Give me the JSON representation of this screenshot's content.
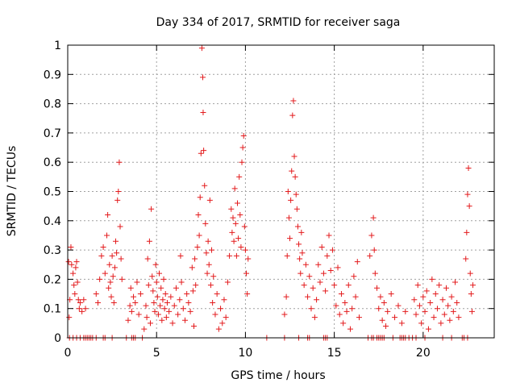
{
  "chart_data": {
    "type": "scatter",
    "title": "Day 334 of 2017, SRMTID for receiver saga",
    "xlabel": "GPS time / hours",
    "ylabel": "SRMTID / TECUs",
    "xlim": [
      0,
      24
    ],
    "ylim": [
      0,
      1
    ],
    "xticks": [
      0,
      5,
      10,
      15,
      20
    ],
    "yticks": [
      0,
      0.1,
      0.2,
      0.3,
      0.4,
      0.5,
      0.6,
      0.7,
      0.8,
      0.9,
      1
    ],
    "grid": true,
    "marker": "+",
    "color": "#e31a1c",
    "series": [
      {
        "values": [
          [
            0.05,
            0.26
          ],
          [
            0.08,
            0.07
          ],
          [
            0.12,
            0.13
          ],
          [
            0.18,
            0.31
          ],
          [
            0.22,
            0.25
          ],
          [
            0.3,
            0.22
          ],
          [
            0.35,
            0.18
          ],
          [
            0.4,
            0.15
          ],
          [
            0.45,
            0.24
          ],
          [
            0.5,
            0.26
          ],
          [
            0.55,
            0.19
          ],
          [
            0.6,
            0.13
          ],
          [
            0.65,
            0.1
          ],
          [
            0.7,
            0.12
          ],
          [
            0.8,
            0.09
          ],
          [
            0.9,
            0.13
          ],
          [
            1.0,
            0.1
          ],
          [
            1.6,
            0.15
          ],
          [
            1.7,
            0.12
          ],
          [
            1.8,
            0.2
          ],
          [
            1.9,
            0.28
          ],
          [
            2.0,
            0.31
          ],
          [
            2.1,
            0.22
          ],
          [
            2.2,
            0.35
          ],
          [
            2.25,
            0.42
          ],
          [
            2.3,
            0.17
          ],
          [
            2.35,
            0.25
          ],
          [
            2.4,
            0.19
          ],
          [
            2.45,
            0.14
          ],
          [
            2.5,
            0.28
          ],
          [
            2.55,
            0.21
          ],
          [
            2.6,
            0.12
          ],
          [
            2.65,
            0.24
          ],
          [
            2.7,
            0.33
          ],
          [
            2.75,
            0.29
          ],
          [
            2.8,
            0.47
          ],
          [
            2.85,
            0.5
          ],
          [
            2.9,
            0.6
          ],
          [
            2.95,
            0.38
          ],
          [
            3.0,
            0.27
          ],
          [
            3.05,
            0.2
          ],
          [
            3.4,
            0.06
          ],
          [
            3.5,
            0.11
          ],
          [
            3.55,
            0.17
          ],
          [
            3.6,
            0.09
          ],
          [
            3.7,
            0.14
          ],
          [
            3.8,
            0.12
          ],
          [
            3.9,
            0.19
          ],
          [
            4.0,
            0.08
          ],
          [
            4.1,
            0.15
          ],
          [
            4.3,
            0.03
          ],
          [
            4.4,
            0.11
          ],
          [
            4.45,
            0.07
          ],
          [
            4.5,
            0.27
          ],
          [
            4.55,
            0.18
          ],
          [
            4.6,
            0.33
          ],
          [
            4.65,
            0.05
          ],
          [
            4.7,
            0.44
          ],
          [
            4.75,
            0.21
          ],
          [
            4.8,
            0.16
          ],
          [
            4.85,
            0.12
          ],
          [
            4.9,
            0.09
          ],
          [
            4.95,
            0.25
          ],
          [
            5.0,
            0.19
          ],
          [
            5.05,
            0.14
          ],
          [
            5.1,
            0.08
          ],
          [
            5.15,
            0.22
          ],
          [
            5.2,
            0.11
          ],
          [
            5.25,
            0.17
          ],
          [
            5.3,
            0.06
          ],
          [
            5.35,
            0.13
          ],
          [
            5.4,
            0.2
          ],
          [
            5.45,
            0.1
          ],
          [
            5.5,
            0.15
          ],
          [
            5.55,
            0.07
          ],
          [
            5.6,
            0.12
          ],
          [
            5.7,
            0.09
          ],
          [
            5.8,
            0.14
          ],
          [
            5.9,
            0.05
          ],
          [
            6.0,
            0.11
          ],
          [
            6.1,
            0.17
          ],
          [
            6.2,
            0.08
          ],
          [
            6.3,
            0.13
          ],
          [
            6.35,
            0.28
          ],
          [
            6.4,
            0.19
          ],
          [
            6.5,
            0.1
          ],
          [
            6.6,
            0.06
          ],
          [
            6.7,
            0.15
          ],
          [
            6.8,
            0.12
          ],
          [
            6.9,
            0.09
          ],
          [
            7.0,
            0.24
          ],
          [
            7.05,
            0.16
          ],
          [
            7.1,
            0.04
          ],
          [
            7.15,
            0.27
          ],
          [
            7.2,
            0.18
          ],
          [
            7.3,
            0.31
          ],
          [
            7.35,
            0.42
          ],
          [
            7.4,
            0.35
          ],
          [
            7.45,
            0.48
          ],
          [
            7.5,
            0.63
          ],
          [
            7.55,
            0.99
          ],
          [
            7.6,
            0.89
          ],
          [
            7.62,
            0.77
          ],
          [
            7.65,
            0.64
          ],
          [
            7.7,
            0.52
          ],
          [
            7.75,
            0.39
          ],
          [
            7.8,
            0.29
          ],
          [
            7.85,
            0.22
          ],
          [
            7.9,
            0.33
          ],
          [
            7.95,
            0.25
          ],
          [
            8.0,
            0.47
          ],
          [
            8.05,
            0.18
          ],
          [
            8.1,
            0.3
          ],
          [
            8.15,
            0.12
          ],
          [
            8.2,
            0.21
          ],
          [
            8.3,
            0.08
          ],
          [
            8.4,
            0.15
          ],
          [
            8.5,
            0.03
          ],
          [
            8.6,
            0.1
          ],
          [
            8.7,
            0.05
          ],
          [
            8.8,
            0.13
          ],
          [
            8.9,
            0.07
          ],
          [
            9.0,
            0.19
          ],
          [
            9.1,
            0.28
          ],
          [
            9.2,
            0.44
          ],
          [
            9.25,
            0.36
          ],
          [
            9.3,
            0.41
          ],
          [
            9.35,
            0.33
          ],
          [
            9.4,
            0.51
          ],
          [
            9.45,
            0.39
          ],
          [
            9.5,
            0.28
          ],
          [
            9.55,
            0.46
          ],
          [
            9.6,
            0.34
          ],
          [
            9.65,
            0.55
          ],
          [
            9.7,
            0.42
          ],
          [
            9.75,
            0.31
          ],
          [
            9.8,
            0.6
          ],
          [
            9.85,
            0.65
          ],
          [
            9.9,
            0.69
          ],
          [
            9.95,
            0.38
          ],
          [
            10.0,
            0.3
          ],
          [
            10.05,
            0.22
          ],
          [
            10.1,
            0.15
          ],
          [
            10.15,
            0.27
          ],
          [
            12.2,
            0.08
          ],
          [
            12.3,
            0.14
          ],
          [
            12.35,
            0.28
          ],
          [
            12.4,
            0.5
          ],
          [
            12.45,
            0.41
          ],
          [
            12.5,
            0.34
          ],
          [
            12.55,
            0.47
          ],
          [
            12.6,
            0.57
          ],
          [
            12.65,
            0.76
          ],
          [
            12.7,
            0.81
          ],
          [
            12.75,
            0.62
          ],
          [
            12.8,
            0.55
          ],
          [
            12.85,
            0.49
          ],
          [
            12.9,
            0.44
          ],
          [
            12.95,
            0.38
          ],
          [
            13.0,
            0.32
          ],
          [
            13.05,
            0.27
          ],
          [
            13.1,
            0.22
          ],
          [
            13.15,
            0.36
          ],
          [
            13.2,
            0.29
          ],
          [
            13.3,
            0.18
          ],
          [
            13.4,
            0.25
          ],
          [
            13.5,
            0.14
          ],
          [
            13.6,
            0.21
          ],
          [
            13.7,
            0.1
          ],
          [
            13.8,
            0.17
          ],
          [
            13.9,
            0.07
          ],
          [
            14.0,
            0.13
          ],
          [
            14.1,
            0.25
          ],
          [
            14.2,
            0.19
          ],
          [
            14.3,
            0.31
          ],
          [
            14.4,
            0.22
          ],
          [
            14.5,
            0.16
          ],
          [
            14.6,
            0.28
          ],
          [
            14.7,
            0.35
          ],
          [
            14.8,
            0.23
          ],
          [
            14.9,
            0.3
          ],
          [
            15.0,
            0.18
          ],
          [
            15.1,
            0.11
          ],
          [
            15.2,
            0.24
          ],
          [
            15.3,
            0.08
          ],
          [
            15.4,
            0.15
          ],
          [
            15.5,
            0.05
          ],
          [
            15.6,
            0.12
          ],
          [
            15.7,
            0.09
          ],
          [
            15.8,
            0.18
          ],
          [
            15.9,
            0.03
          ],
          [
            16.0,
            0.1
          ],
          [
            16.1,
            0.21
          ],
          [
            16.2,
            0.14
          ],
          [
            16.3,
            0.26
          ],
          [
            16.4,
            0.07
          ],
          [
            17.0,
            0.28
          ],
          [
            17.1,
            0.35
          ],
          [
            17.2,
            0.41
          ],
          [
            17.25,
            0.3
          ],
          [
            17.3,
            0.22
          ],
          [
            17.4,
            0.17
          ],
          [
            17.5,
            0.1
          ],
          [
            17.6,
            0.14
          ],
          [
            17.7,
            0.06
          ],
          [
            17.8,
            0.12
          ],
          [
            17.9,
            0.04
          ],
          [
            18.0,
            0.09
          ],
          [
            18.2,
            0.15
          ],
          [
            18.4,
            0.07
          ],
          [
            18.6,
            0.11
          ],
          [
            18.8,
            0.05
          ],
          [
            19.0,
            0.09
          ],
          [
            19.5,
            0.13
          ],
          [
            19.6,
            0.08
          ],
          [
            19.7,
            0.18
          ],
          [
            19.8,
            0.11
          ],
          [
            19.9,
            0.05
          ],
          [
            20.0,
            0.14
          ],
          [
            20.1,
            0.09
          ],
          [
            20.2,
            0.16
          ],
          [
            20.3,
            0.03
          ],
          [
            20.4,
            0.12
          ],
          [
            20.5,
            0.2
          ],
          [
            20.6,
            0.07
          ],
          [
            20.7,
            0.15
          ],
          [
            20.8,
            0.1
          ],
          [
            20.9,
            0.18
          ],
          [
            21.0,
            0.05
          ],
          [
            21.1,
            0.13
          ],
          [
            21.2,
            0.08
          ],
          [
            21.3,
            0.17
          ],
          [
            21.4,
            0.11
          ],
          [
            21.5,
            0.06
          ],
          [
            21.6,
            0.14
          ],
          [
            21.7,
            0.09
          ],
          [
            21.8,
            0.19
          ],
          [
            21.9,
            0.12
          ],
          [
            22.0,
            0.07
          ],
          [
            22.4,
            0.27
          ],
          [
            22.45,
            0.36
          ],
          [
            22.5,
            0.49
          ],
          [
            22.55,
            0.58
          ],
          [
            22.6,
            0.45
          ],
          [
            22.65,
            0.22
          ],
          [
            22.7,
            0.15
          ],
          [
            22.75,
            0.09
          ],
          [
            22.8,
            0.18
          ]
        ]
      },
      {
        "values": [
          [
            0.1,
            0
          ],
          [
            0.3,
            0
          ],
          [
            0.5,
            0
          ],
          [
            0.7,
            0
          ],
          [
            0.9,
            0
          ],
          [
            1.0,
            0
          ],
          [
            1.1,
            0
          ],
          [
            1.2,
            0
          ],
          [
            1.3,
            0
          ],
          [
            1.4,
            0
          ],
          [
            1.6,
            0
          ],
          [
            2.0,
            0
          ],
          [
            2.1,
            0
          ],
          [
            2.5,
            0
          ],
          [
            3.3,
            0
          ],
          [
            3.6,
            0
          ],
          [
            3.7,
            0
          ],
          [
            3.8,
            0
          ],
          [
            4.2,
            0
          ],
          [
            11.2,
            0
          ],
          [
            12.2,
            0
          ],
          [
            13.0,
            0
          ],
          [
            13.5,
            0
          ],
          [
            13.6,
            0
          ],
          [
            14.4,
            0
          ],
          [
            14.5,
            0
          ],
          [
            14.6,
            0
          ],
          [
            16.9,
            0
          ],
          [
            17.1,
            0
          ],
          [
            17.2,
            0
          ],
          [
            17.4,
            0
          ],
          [
            17.5,
            0
          ],
          [
            17.6,
            0
          ],
          [
            17.7,
            0
          ],
          [
            17.8,
            0
          ],
          [
            18.3,
            0
          ],
          [
            18.7,
            0
          ],
          [
            18.8,
            0
          ],
          [
            18.9,
            0
          ],
          [
            19.0,
            0
          ],
          [
            19.2,
            0
          ],
          [
            19.4,
            0
          ],
          [
            19.6,
            0
          ],
          [
            20.1,
            0
          ],
          [
            21.1,
            0
          ],
          [
            21.6,
            0
          ],
          [
            22.2,
            0
          ],
          [
            22.3,
            0
          ],
          [
            22.5,
            0
          ]
        ]
      }
    ]
  }
}
